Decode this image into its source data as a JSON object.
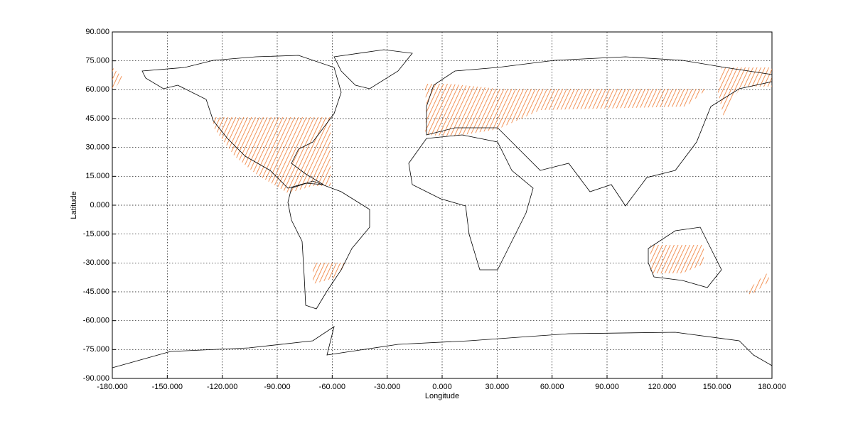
{
  "chart_data": {
    "type": "map",
    "xlabel": "Longitude",
    "ylabel": "Latitude",
    "xlim": [
      -180,
      180
    ],
    "ylim": [
      -90,
      90
    ],
    "xticks": [
      {
        "value": -180,
        "label": "-180.000"
      },
      {
        "value": -150,
        "label": "-150.000"
      },
      {
        "value": -120,
        "label": "-120.000"
      },
      {
        "value": -90,
        "label": "-90.000"
      },
      {
        "value": -60,
        "label": "-60.000"
      },
      {
        "value": -30,
        "label": "-30.000"
      },
      {
        "value": 0,
        "label": "0.000"
      },
      {
        "value": 30,
        "label": "30.000"
      },
      {
        "value": 60,
        "label": "60.000"
      },
      {
        "value": 90,
        "label": "90.000"
      },
      {
        "value": 120,
        "label": "120.000"
      },
      {
        "value": 150,
        "label": "150.000"
      },
      {
        "value": 180,
        "label": "180.000"
      }
    ],
    "yticks": [
      {
        "value": -90,
        "label": "-90.000"
      },
      {
        "value": -75,
        "label": "-75.000"
      },
      {
        "value": -60,
        "label": "-60.000"
      },
      {
        "value": -45,
        "label": "-45.000"
      },
      {
        "value": -30,
        "label": "-30.000"
      },
      {
        "value": -15,
        "label": "-15.000"
      },
      {
        "value": 0,
        "label": "0.000"
      },
      {
        "value": 15,
        "label": "15.000"
      },
      {
        "value": 30,
        "label": "30.000"
      },
      {
        "value": 45,
        "label": "45.000"
      },
      {
        "value": 60,
        "label": "60.000"
      },
      {
        "value": 75,
        "label": "75.000"
      },
      {
        "value": 90,
        "label": "90.000"
      }
    ],
    "grid": true,
    "color": "#f07a30"
  }
}
